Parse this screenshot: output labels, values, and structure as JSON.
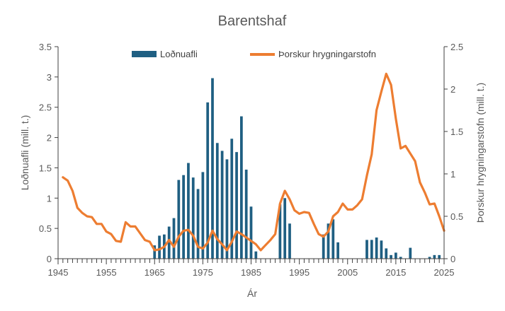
{
  "chart_data": {
    "type": "bar+line",
    "title": "Barentshaf",
    "xlabel": "Ár",
    "ylabel_left": "Loðnuafli (mill. t.)",
    "ylabel_right": "Þorskur hrygningarstofn (mill. t.)",
    "xlim": [
      1945,
      2025
    ],
    "x_ticks": [
      "1945",
      "1955",
      "1965",
      "1975",
      "1985",
      "1995",
      "2005",
      "2015",
      "2025"
    ],
    "ylim_left": [
      0,
      3.5
    ],
    "y_ticks_left": [
      "0",
      "0.5",
      "1",
      "1.5",
      "2",
      "2.5",
      "3",
      "3.5"
    ],
    "ylim_right": [
      0,
      2.5
    ],
    "y_ticks_right": [
      "0",
      "0.5",
      "1",
      "1.5",
      "2",
      "2.5"
    ],
    "legend_position": "top",
    "grid": false,
    "series": [
      {
        "name": "Loðnuafli",
        "kind": "bar",
        "axis": "left",
        "color": "#1f5f82",
        "x": [
          1965,
          1966,
          1967,
          1968,
          1969,
          1970,
          1971,
          1972,
          1973,
          1974,
          1975,
          1976,
          1977,
          1978,
          1979,
          1980,
          1981,
          1982,
          1983,
          1984,
          1985,
          1986,
          1991,
          1992,
          1993,
          2000,
          2001,
          2002,
          2003,
          2009,
          2010,
          2011,
          2012,
          2013,
          2014,
          2015,
          2016,
          2018,
          2022,
          2023,
          2024
        ],
        "values": [
          0.22,
          0.38,
          0.4,
          0.53,
          0.67,
          1.3,
          1.38,
          1.58,
          1.34,
          1.15,
          1.43,
          2.58,
          2.98,
          1.91,
          1.78,
          1.64,
          1.98,
          1.76,
          2.35,
          1.47,
          0.86,
          0.12,
          0.9,
          1.0,
          0.58,
          0.4,
          0.58,
          0.65,
          0.27,
          0.31,
          0.31,
          0.35,
          0.3,
          0.17,
          0.06,
          0.1,
          0.03,
          0.18,
          0.03,
          0.06,
          0.06
        ]
      },
      {
        "name": "Þorskur hrygningarstofn",
        "kind": "line",
        "axis": "right",
        "color": "#ed7d31",
        "x": [
          1946,
          1947,
          1948,
          1949,
          1950,
          1951,
          1952,
          1953,
          1954,
          1955,
          1956,
          1957,
          1958,
          1959,
          1960,
          1961,
          1962,
          1963,
          1964,
          1965,
          1966,
          1967,
          1968,
          1969,
          1970,
          1971,
          1972,
          1973,
          1974,
          1975,
          1976,
          1977,
          1978,
          1979,
          1980,
          1981,
          1982,
          1983,
          1984,
          1985,
          1986,
          1987,
          1988,
          1989,
          1990,
          1991,
          1992,
          1993,
          1994,
          1995,
          1996,
          1997,
          1998,
          1999,
          2000,
          2001,
          2002,
          2003,
          2004,
          2005,
          2006,
          2007,
          2008,
          2009,
          2010,
          2011,
          2012,
          2013,
          2014,
          2015,
          2016,
          2017,
          2018,
          2019,
          2020,
          2021,
          2022,
          2023,
          2024,
          2025
        ],
        "values": [
          0.96,
          0.92,
          0.8,
          0.6,
          0.54,
          0.5,
          0.49,
          0.41,
          0.41,
          0.32,
          0.29,
          0.21,
          0.2,
          0.43,
          0.38,
          0.38,
          0.3,
          0.22,
          0.2,
          0.1,
          0.11,
          0.14,
          0.22,
          0.14,
          0.26,
          0.33,
          0.34,
          0.27,
          0.14,
          0.12,
          0.19,
          0.33,
          0.23,
          0.17,
          0.1,
          0.2,
          0.32,
          0.29,
          0.25,
          0.21,
          0.17,
          0.1,
          0.16,
          0.22,
          0.29,
          0.65,
          0.8,
          0.7,
          0.57,
          0.53,
          0.55,
          0.54,
          0.41,
          0.29,
          0.26,
          0.32,
          0.5,
          0.55,
          0.65,
          0.58,
          0.58,
          0.63,
          0.7,
          0.98,
          1.23,
          1.75,
          1.97,
          2.18,
          2.05,
          1.65,
          1.3,
          1.33,
          1.24,
          1.15,
          0.9,
          0.78,
          0.64,
          0.65,
          0.5,
          0.33
        ]
      }
    ]
  }
}
